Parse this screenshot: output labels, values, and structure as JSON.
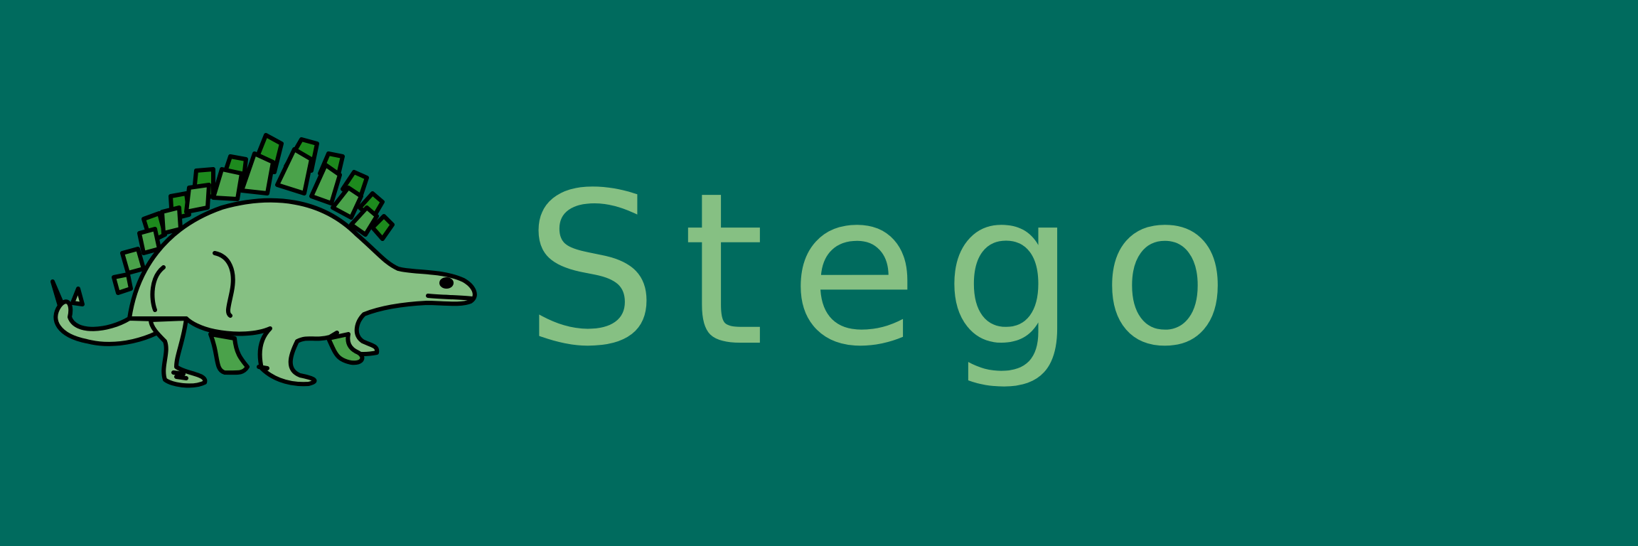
{
  "banner": {
    "title": "Stego",
    "logo_icon": "stegosaurus-icon",
    "colors": {
      "background": "#006b5e",
      "text": "#86c083",
      "body": "#86c083",
      "plate_dark": "#1d8a1d",
      "plate_light": "#4aa24a",
      "outline": "#000000"
    }
  }
}
